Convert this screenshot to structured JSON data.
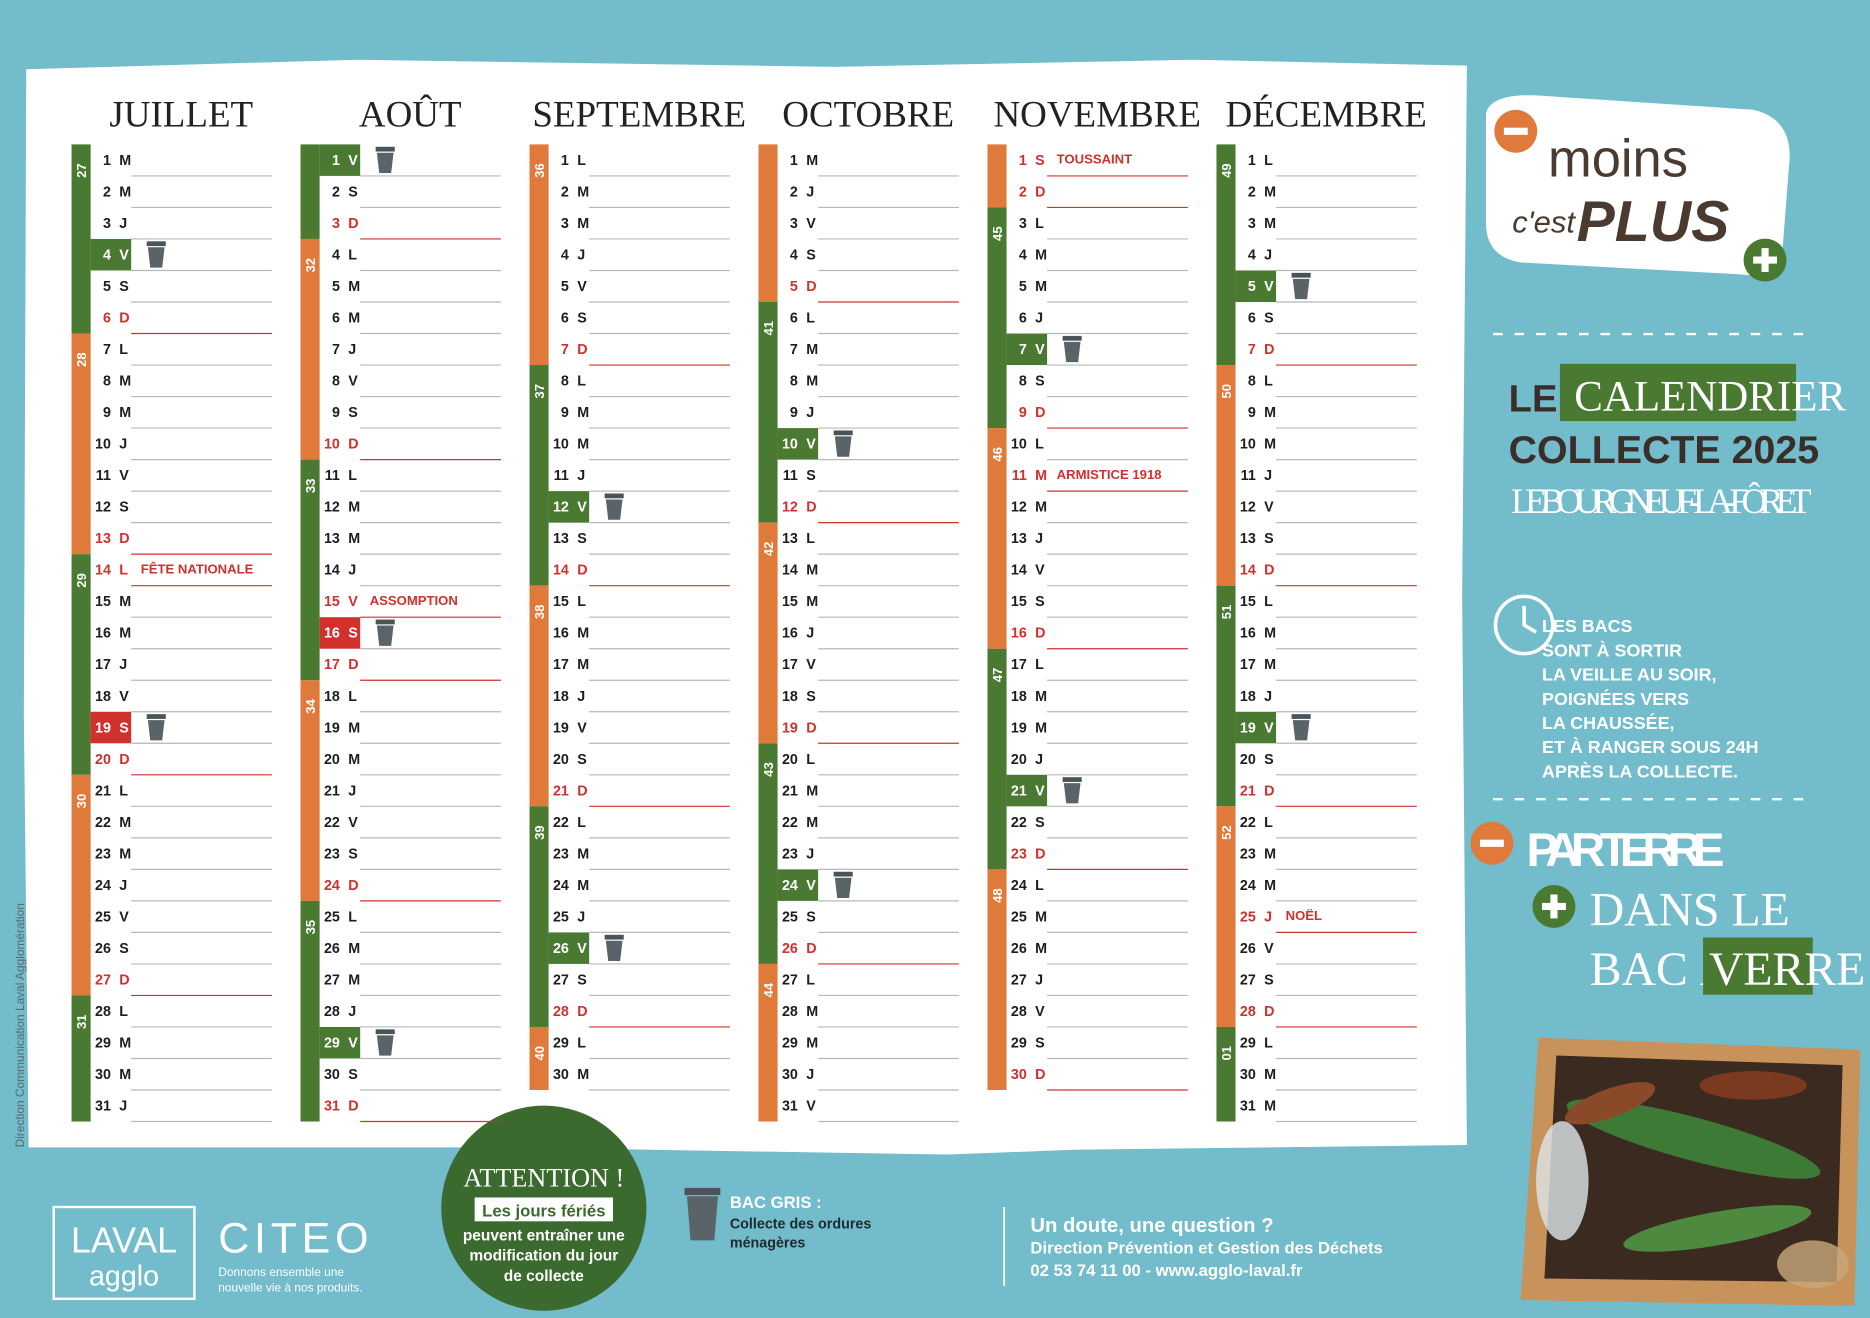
{
  "months": [
    {
      "name": "JUILLET",
      "days": [
        1,
        2,
        3,
        4,
        5,
        6,
        7,
        8,
        9,
        10,
        11,
        12,
        13,
        14,
        15,
        16,
        17,
        18,
        19,
        20,
        21,
        22,
        23,
        24,
        25,
        26,
        27,
        28,
        29,
        30,
        31
      ],
      "letters": [
        "M",
        "M",
        "J",
        "V",
        "S",
        "D",
        "L",
        "M",
        "M",
        "J",
        "V",
        "S",
        "D",
        "L",
        "M",
        "M",
        "J",
        "V",
        "S",
        "D",
        "L",
        "M",
        "M",
        "J",
        "V",
        "S",
        "D",
        "L",
        "M",
        "M",
        "J"
      ],
      "weeks": [
        "27",
        "28",
        "29",
        "30",
        "31"
      ],
      "holidays": [
        {
          "day": 14,
          "label": "FÊTE NATIONALE"
        }
      ],
      "collections": [
        {
          "day": 4,
          "color": "#4a7a32"
        },
        {
          "day": 19,
          "color": "#d0312d"
        }
      ]
    },
    {
      "name": "AOÛT",
      "days": [
        1,
        2,
        3,
        4,
        5,
        6,
        7,
        8,
        9,
        10,
        11,
        12,
        13,
        14,
        15,
        16,
        17,
        18,
        19,
        20,
        21,
        22,
        23,
        24,
        25,
        26,
        27,
        28,
        29,
        30,
        31
      ],
      "letters": [
        "V",
        "S",
        "D",
        "L",
        "M",
        "M",
        "J",
        "V",
        "S",
        "D",
        "L",
        "M",
        "M",
        "J",
        "V",
        "S",
        "D",
        "L",
        "M",
        "M",
        "J",
        "V",
        "S",
        "D",
        "L",
        "M",
        "M",
        "J",
        "V",
        "S",
        "D"
      ],
      "weeks": [
        null,
        "32",
        "33",
        "34",
        "35"
      ],
      "holidays": [
        {
          "day": 15,
          "label": "ASSOMPTION"
        }
      ],
      "collections": [
        {
          "day": 1,
          "color": "#4a7a32"
        },
        {
          "day": 16,
          "color": "#d0312d"
        },
        {
          "day": 29,
          "color": "#4a7a32"
        }
      ]
    },
    {
      "name": "SEPTEMBRE",
      "days": [
        1,
        2,
        3,
        4,
        5,
        6,
        7,
        8,
        9,
        10,
        11,
        12,
        13,
        14,
        15,
        16,
        17,
        18,
        19,
        20,
        21,
        22,
        23,
        24,
        25,
        26,
        27,
        28,
        29,
        30
      ],
      "letters": [
        "L",
        "M",
        "M",
        "J",
        "V",
        "S",
        "D",
        "L",
        "M",
        "M",
        "J",
        "V",
        "S",
        "D",
        "L",
        "M",
        "M",
        "J",
        "V",
        "S",
        "D",
        "L",
        "M",
        "M",
        "J",
        "V",
        "S",
        "D",
        "L",
        "M"
      ],
      "weeks": [
        "36",
        "37",
        "38",
        "39",
        "40"
      ],
      "holidays": [],
      "collections": [
        {
          "day": 12,
          "color": "#4a7a32"
        },
        {
          "day": 26,
          "color": "#4a7a32"
        }
      ]
    },
    {
      "name": "OCTOBRE",
      "days": [
        1,
        2,
        3,
        4,
        5,
        6,
        7,
        8,
        9,
        10,
        11,
        12,
        13,
        14,
        15,
        16,
        17,
        18,
        19,
        20,
        21,
        22,
        23,
        24,
        25,
        26,
        27,
        28,
        29,
        30,
        31
      ],
      "letters": [
        "M",
        "J",
        "V",
        "S",
        "D",
        "L",
        "M",
        "M",
        "J",
        "V",
        "S",
        "D",
        "L",
        "M",
        "M",
        "J",
        "V",
        "S",
        "D",
        "L",
        "M",
        "M",
        "J",
        "V",
        "S",
        "D",
        "L",
        "M",
        "M",
        "J",
        "V"
      ],
      "weeks": [
        null,
        "41",
        "42",
        "43",
        "44"
      ],
      "holidays": [],
      "collections": [
        {
          "day": 10,
          "color": "#4a7a32"
        },
        {
          "day": 24,
          "color": "#4a7a32"
        }
      ]
    },
    {
      "name": "NOVEMBRE",
      "days": [
        1,
        2,
        3,
        4,
        5,
        6,
        7,
        8,
        9,
        10,
        11,
        12,
        13,
        14,
        15,
        16,
        17,
        18,
        19,
        20,
        21,
        22,
        23,
        24,
        25,
        26,
        27,
        28,
        29,
        30
      ],
      "letters": [
        "S",
        "D",
        "L",
        "M",
        "M",
        "J",
        "V",
        "S",
        "D",
        "L",
        "M",
        "M",
        "J",
        "V",
        "S",
        "D",
        "L",
        "M",
        "M",
        "J",
        "V",
        "S",
        "D",
        "L",
        "M",
        "M",
        "J",
        "V",
        "S",
        "D"
      ],
      "weeks": [
        null,
        "45",
        "46",
        "47",
        "48"
      ],
      "holidays": [
        {
          "day": 1,
          "label": "TOUSSAINT"
        },
        {
          "day": 11,
          "label": "ARMISTICE 1918"
        }
      ],
      "collections": [
        {
          "day": 7,
          "color": "#4a7a32"
        },
        {
          "day": 21,
          "color": "#4a7a32"
        }
      ]
    },
    {
      "name": "DÉCEMBRE",
      "days": [
        1,
        2,
        3,
        4,
        5,
        6,
        7,
        8,
        9,
        10,
        11,
        12,
        13,
        14,
        15,
        16,
        17,
        18,
        19,
        20,
        21,
        22,
        23,
        24,
        25,
        26,
        27,
        28,
        29,
        30,
        31
      ],
      "letters": [
        "L",
        "M",
        "M",
        "J",
        "V",
        "S",
        "D",
        "L",
        "M",
        "M",
        "J",
        "V",
        "S",
        "D",
        "L",
        "M",
        "M",
        "J",
        "V",
        "S",
        "D",
        "L",
        "M",
        "M",
        "J",
        "V",
        "S",
        "D",
        "L",
        "M",
        "M"
      ],
      "weeks": [
        "49",
        "50",
        "51",
        "52",
        "01"
      ],
      "holidays": [
        {
          "day": 25,
          "label": "NOËL"
        }
      ],
      "collections": [
        {
          "day": 5,
          "color": "#4a7a32"
        },
        {
          "day": 19,
          "color": "#4a7a32"
        }
      ]
    }
  ],
  "panel": {
    "slogan": {
      "moins": "moins",
      "cest": "c'est",
      "plus": "PLUS"
    },
    "title": {
      "le": "LE",
      "calendrier": "CALENDRIER",
      "collecte": "COLLECTE 2025",
      "commune": "LE BOURGNEUF-LA-FÔRET"
    },
    "notice": [
      "LES BACS",
      "SONT À SORTIR",
      "LA VEILLE AU SOIR,",
      "POIGNÉES VERS",
      "LA CHAUSSÉE,",
      "ET À RANGER SOUS 24H",
      "APRÈS LA COLLECTE."
    ],
    "glass": {
      "line1": "PAR TERRE",
      "line2": "DANS LE",
      "line3": "BAC À",
      "line3b": "VERRE"
    }
  },
  "footer": {
    "credit": "Direction Communication Laval Agglomération",
    "laval": {
      "top": "LAVAL",
      "bottom": "agglo"
    },
    "citeo": {
      "name": "CITEO",
      "tagline": [
        "Donnons ensemble une",
        "nouvelle vie à nos produits."
      ]
    },
    "attention": {
      "title": "ATTENTION !",
      "highlight": "Les jours fériés",
      "lines": [
        "peuvent entraîner une",
        "modification du jour",
        "de collecte"
      ]
    },
    "bac": {
      "title": "BAC GRIS :",
      "lines": [
        "Collecte des ordures",
        "ménagères"
      ]
    },
    "contact": {
      "question": "Un doute, une question ?",
      "service": "Direction Prévention et Gestion des Déchets",
      "phone": "02 53 74 11 00 - www.agglo-laval.fr"
    }
  }
}
